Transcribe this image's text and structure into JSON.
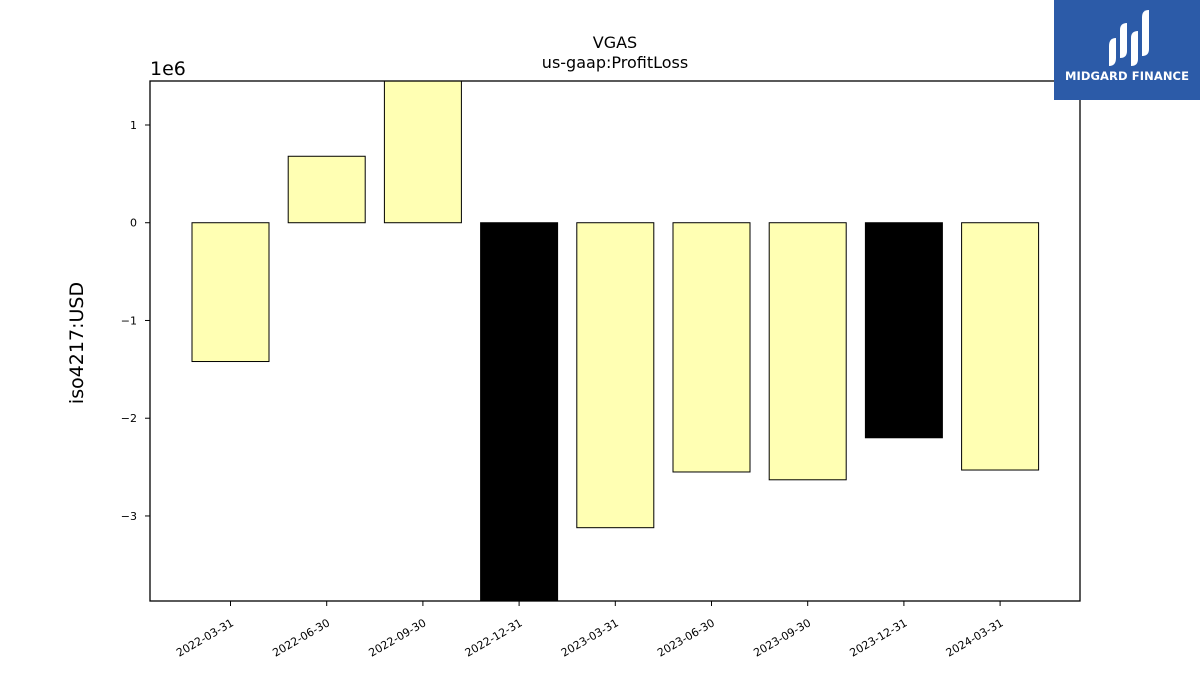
{
  "chart_data": {
    "type": "bar",
    "title": "VGAS",
    "subtitle": "us-gaap:ProfitLoss",
    "ylabel": "iso4217:USD",
    "xlabel": "",
    "offset_label": "1e6",
    "categories": [
      "2022-03-31",
      "2022-06-30",
      "2022-09-30",
      "2022-12-31",
      "2023-03-31",
      "2023-06-30",
      "2023-09-30",
      "2023-12-31",
      "2024-03-31"
    ],
    "values": [
      -1420000,
      680000,
      1450000,
      -3870000,
      -3120000,
      -2550000,
      -2630000,
      -2200000,
      -2530000
    ],
    "bar_colors": [
      "#ffffb3",
      "#ffffb3",
      "#ffffb3",
      "#000000",
      "#ffffb3",
      "#ffffb3",
      "#ffffb3",
      "#000000",
      "#ffffb3"
    ],
    "ylim": [
      -3870000,
      1450000
    ],
    "yticks": [
      1000000,
      0,
      -1000000,
      -2000000,
      -3000000
    ],
    "ytick_labels": [
      "1",
      "0",
      "−1",
      "−2",
      "−3"
    ],
    "grid": false
  },
  "logo": {
    "text": "MIDGARD FINANCE",
    "color": "#2c5ba8"
  }
}
